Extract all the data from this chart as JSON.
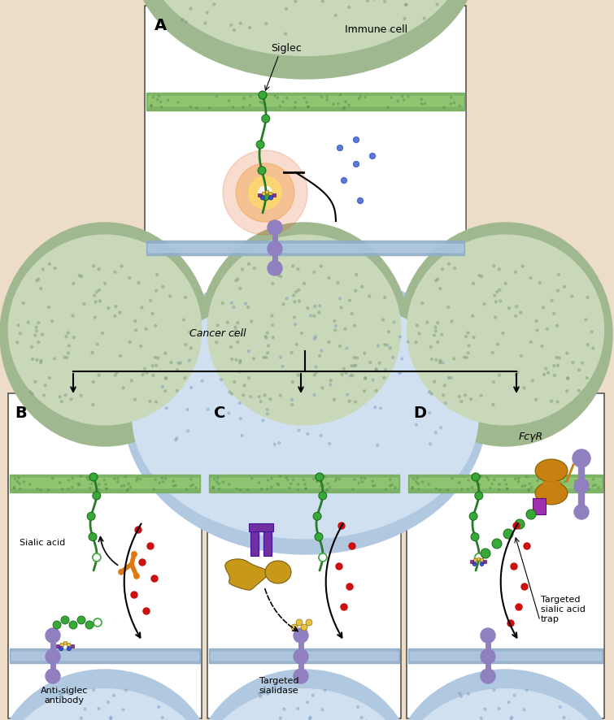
{
  "bg_color": "#eddcc8",
  "panel_border": "#555555",
  "immune_cell_top": "#a0b890",
  "immune_cell_light": "#c8d8b8",
  "immune_mem_color": "#78b060",
  "cancer_cell_color": "#b0c8e0",
  "cancer_cell_light": "#d0e0f0",
  "cancer_mem_color": "#90aec8",
  "siglec_color": "#2a7a2a",
  "receptor_color": "#9080c0",
  "glycan_green": "#38a838",
  "glycan_yellow": "#e8c040",
  "glycan_blue": "#3850c8",
  "glycan_purple": "#8030a0",
  "antibody_orange": "#e07810",
  "sialidase_gold": "#c89818",
  "sialidase_purple": "#7030a0",
  "red_dot": "#cc1010",
  "blue_dot": "#3858c8",
  "fc_orange": "#c88010",
  "fc_purple": "#a030b0",
  "title_A": "A",
  "title_B": "B",
  "title_C": "C",
  "title_D": "D",
  "label_immune": "Immune cell",
  "label_siglec": "Siglec",
  "label_cancer": "Cancer cell",
  "label_sialic": "Sialic acid",
  "label_anti": "Anti-siglec\nantibody",
  "label_sialidase": "Targeted\nsialidase",
  "label_fcyr": "FcγR",
  "label_trap": "Targeted\nsialic acid\ntrap"
}
